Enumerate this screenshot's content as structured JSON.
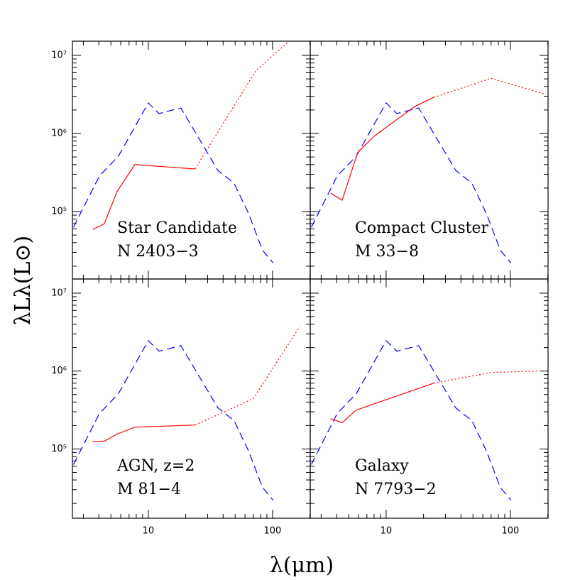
{
  "y_label": "λLλ(L⊙)",
  "x_label": "λ(μm)",
  "chart_data": [
    {
      "type": "line",
      "log_x": true,
      "log_y": true,
      "xlim": [
        2.45,
        201
      ],
      "ylim": [
        13700,
        15200000
      ],
      "xticks": [
        10,
        100
      ],
      "yticks": [
        {
          "value": 100000,
          "label": "10⁵"
        },
        {
          "value": 1000000,
          "label": "10⁶"
        },
        {
          "value": 10000000,
          "label": "10⁷"
        }
      ],
      "annotations": [
        "Star Candidate",
        "N 2403−3"
      ],
      "series": [
        {
          "color": "#0000ff",
          "style": "dashed",
          "x": [
            2.5,
            4.04,
            5.75,
            10,
            12.2,
            18.3,
            36.3,
            49,
            64,
            83,
            101
          ],
          "values": [
            63000,
            285000,
            512000,
            2460000,
            1800000,
            2120000,
            337000,
            231000,
            95000,
            32000,
            22000
          ]
        },
        {
          "color": "#ff0000",
          "style": "solid",
          "x": [
            3.58,
            4.43,
            5.6,
            7.8,
            23.8
          ],
          "values": [
            59000,
            70000,
            180000,
            400000,
            351000
          ]
        },
        {
          "color": "#ff0000",
          "style": "dotted",
          "x": [
            23.8,
            73,
            132
          ],
          "values": [
            351000,
            6300000,
            14600000
          ]
        }
      ]
    },
    {
      "type": "line",
      "log_x": true,
      "log_y": true,
      "xlim": [
        2.45,
        201
      ],
      "ylim": [
        13700,
        15200000
      ],
      "xticks": [
        10,
        100
      ],
      "yticks": [
        {
          "value": 100000,
          "label": "10⁵"
        },
        {
          "value": 1000000,
          "label": "10⁶"
        },
        {
          "value": 10000000,
          "label": "10⁷"
        }
      ],
      "annotations": [
        "Compact Cluster",
        "M 33−8"
      ],
      "series": [
        {
          "color": "#0000ff",
          "style": "dashed",
          "x": [
            2.5,
            4.04,
            5.75,
            10,
            12.2,
            18.3,
            36.3,
            49,
            64,
            83,
            101
          ],
          "values": [
            63000,
            285000,
            512000,
            2460000,
            1800000,
            2120000,
            337000,
            231000,
            95000,
            32000,
            22000
          ]
        },
        {
          "color": "#ff0000",
          "style": "solid",
          "x": [
            3.58,
            4.43,
            5.9,
            8.0,
            16.9,
            24.2
          ],
          "values": [
            172000,
            140000,
            570000,
            920000,
            2200000,
            2900000
          ]
        },
        {
          "color": "#ff0000",
          "style": "dotted",
          "x": [
            24.2,
            70,
            193
          ],
          "values": [
            2900000,
            5100000,
            3160000
          ]
        }
      ]
    },
    {
      "type": "line",
      "log_x": true,
      "log_y": true,
      "xlim": [
        2.45,
        201
      ],
      "ylim": [
        12900,
        15200000
      ],
      "xticks": [
        10,
        100
      ],
      "yticks": [
        {
          "value": 100000,
          "label": "10⁵"
        },
        {
          "value": 1000000,
          "label": "10⁶"
        },
        {
          "value": 10000000,
          "label": "10⁷"
        }
      ],
      "annotations": [
        "AGN, z=2",
        "M 81−4"
      ],
      "series": [
        {
          "color": "#0000ff",
          "style": "dashed",
          "x": [
            2.5,
            4.04,
            5.75,
            10,
            12.2,
            18.3,
            36.3,
            49,
            64,
            83,
            101
          ],
          "values": [
            63000,
            285000,
            512000,
            2460000,
            1800000,
            2120000,
            337000,
            231000,
            95000,
            32000,
            22000
          ]
        },
        {
          "color": "#ff0000",
          "style": "solid",
          "x": [
            3.58,
            4.43,
            5.6,
            7.8,
            23.8
          ],
          "values": [
            123000,
            126000,
            155000,
            190000,
            203000
          ]
        },
        {
          "color": "#ff0000",
          "style": "dotted",
          "x": [
            23.8,
            70,
            165
          ],
          "values": [
            203000,
            442000,
            3700000
          ]
        }
      ]
    },
    {
      "type": "line",
      "log_x": true,
      "log_y": true,
      "xlim": [
        2.45,
        201
      ],
      "ylim": [
        12900,
        15200000
      ],
      "xticks": [
        10,
        100
      ],
      "yticks": [
        {
          "value": 100000,
          "label": "10⁵"
        },
        {
          "value": 1000000,
          "label": "10⁶"
        },
        {
          "value": 10000000,
          "label": "10⁷"
        }
      ],
      "annotations": [
        "Galaxy",
        "N 7793−2"
      ],
      "series": [
        {
          "color": "#0000ff",
          "style": "dashed",
          "x": [
            2.5,
            4.04,
            5.75,
            10,
            12.2,
            18.3,
            36.3,
            49,
            64,
            83,
            101
          ],
          "values": [
            63000,
            285000,
            512000,
            2460000,
            1800000,
            2120000,
            337000,
            231000,
            95000,
            32000,
            22000
          ]
        },
        {
          "color": "#ff0000",
          "style": "solid",
          "x": [
            3.58,
            4.43,
            5.75,
            24.2
          ],
          "values": [
            245000,
            217000,
            316000,
            700000
          ]
        },
        {
          "color": "#ff0000",
          "style": "dotted",
          "x": [
            24.2,
            70,
            170
          ],
          "values": [
            700000,
            960000,
            1000000
          ]
        }
      ]
    }
  ]
}
